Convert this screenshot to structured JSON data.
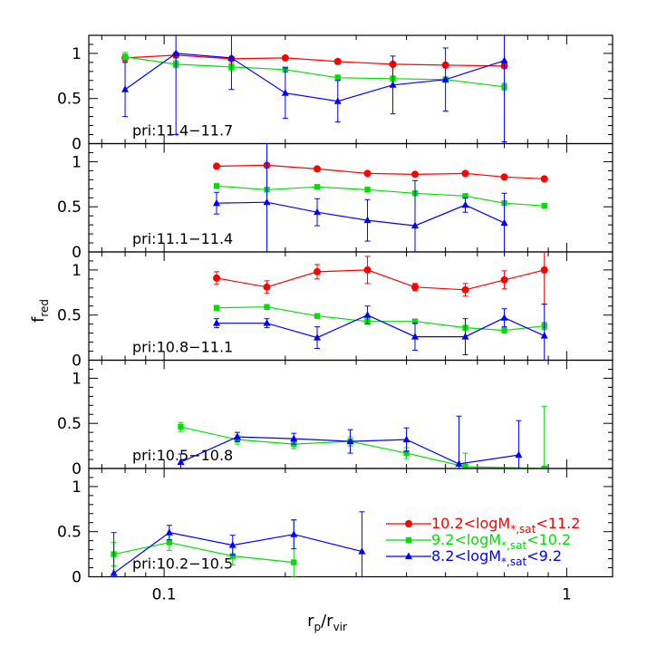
{
  "chart_data": {
    "type": "line",
    "xlabel": "r_p/r_vir",
    "ylabel": "f_red",
    "xscale": "log",
    "xlim": [
      0.065,
      1.3
    ],
    "ylim": [
      0,
      1.2
    ],
    "x_ticks": [
      "0.1",
      "1"
    ],
    "y_ticks": [
      "0",
      "0.5",
      "1"
    ],
    "colors": {
      "high": "#ff0000",
      "mid": "#00e000",
      "low": "#0000ff"
    },
    "legend": {
      "placement": "lower-right of bottom panel",
      "entries": [
        {
          "key": "high",
          "pre": "10.2<logM",
          "sub": "*,sat",
          "post": "<11.2",
          "marker": "circle"
        },
        {
          "key": "mid",
          "pre": "9.2<logM",
          "sub": "*,sat",
          "post": "<10.2",
          "marker": "square"
        },
        {
          "key": "low",
          "pre": "8.2<logM",
          "sub": "*,sat",
          "post": "<9.2",
          "marker": "triangle"
        }
      ]
    },
    "panels": [
      {
        "label": "pri:11.4−11.7",
        "series": [
          {
            "key": "high",
            "points": [
              [
                0.08,
                0.95,
                0.04
              ],
              [
                0.107,
                0.98,
                0.03
              ],
              [
                0.147,
                0.94,
                0.02
              ],
              [
                0.2,
                0.95,
                0.02
              ],
              [
                0.27,
                0.91,
                0.02
              ],
              [
                0.37,
                0.88,
                0.02
              ],
              [
                0.5,
                0.87,
                0.02
              ],
              [
                0.7,
                0.86,
                0.02
              ]
            ]
          },
          {
            "key": "mid",
            "points": [
              [
                0.08,
                0.96,
                0.05
              ],
              [
                0.107,
                0.88,
                0.04
              ],
              [
                0.147,
                0.85,
                0.04
              ],
              [
                0.2,
                0.82,
                0.03
              ],
              [
                0.27,
                0.73,
                0.03
              ],
              [
                0.37,
                0.72,
                0.03
              ],
              [
                0.5,
                0.71,
                0.03
              ],
              [
                0.7,
                0.63,
                0.04
              ]
            ]
          },
          {
            "key": "low",
            "points": [
              [
                0.08,
                0.6,
                0.3
              ],
              [
                0.107,
                1.0,
                0.9
              ],
              [
                0.147,
                0.95,
                0.35
              ],
              [
                0.2,
                0.56,
                0.28
              ],
              [
                0.27,
                0.47,
                0.23
              ],
              [
                0.37,
                0.65,
                0.32
              ],
              [
                0.5,
                0.71,
                0.35
              ],
              [
                0.7,
                0.92,
                0.9
              ]
            ]
          }
        ]
      },
      {
        "label": "pri:11.1−11.4",
        "series": [
          {
            "key": "high",
            "points": [
              [
                0.135,
                0.95,
                0.02
              ],
              [
                0.18,
                0.96,
                0.02
              ],
              [
                0.24,
                0.92,
                0.02
              ],
              [
                0.32,
                0.87,
                0.02
              ],
              [
                0.42,
                0.86,
                0.02
              ],
              [
                0.56,
                0.87,
                0.02
              ],
              [
                0.7,
                0.83,
                0.02
              ],
              [
                0.88,
                0.81,
                0.02
              ]
            ]
          },
          {
            "key": "mid",
            "points": [
              [
                0.135,
                0.73,
                0.02
              ],
              [
                0.18,
                0.69,
                0.02
              ],
              [
                0.24,
                0.72,
                0.02
              ],
              [
                0.32,
                0.69,
                0.02
              ],
              [
                0.42,
                0.65,
                0.02
              ],
              [
                0.56,
                0.62,
                0.02
              ],
              [
                0.7,
                0.54,
                0.02
              ],
              [
                0.88,
                0.51,
                0.02
              ]
            ]
          },
          {
            "key": "low",
            "points": [
              [
                0.135,
                0.54,
                0.12
              ],
              [
                0.18,
                0.55,
                0.65
              ],
              [
                0.24,
                0.44,
                0.15
              ],
              [
                0.32,
                0.35,
                0.23
              ],
              [
                0.42,
                0.29,
                0.5
              ],
              [
                0.56,
                0.52,
                0.08
              ],
              [
                0.7,
                0.32,
                0.33
              ]
            ]
          }
        ]
      },
      {
        "label": "pri:10.8−11.1",
        "series": [
          {
            "key": "high",
            "points": [
              [
                0.135,
                0.91,
                0.07
              ],
              [
                0.18,
                0.81,
                0.07
              ],
              [
                0.24,
                0.98,
                0.08
              ],
              [
                0.32,
                1.0,
                0.15
              ],
              [
                0.42,
                0.81,
                0.04
              ],
              [
                0.56,
                0.78,
                0.07
              ],
              [
                0.7,
                0.89,
                0.1
              ],
              [
                0.88,
                1.0,
                0.38
              ]
            ]
          },
          {
            "key": "mid",
            "points": [
              [
                0.135,
                0.58,
                0.02
              ],
              [
                0.18,
                0.59,
                0.02
              ],
              [
                0.24,
                0.49,
                0.02
              ],
              [
                0.32,
                0.43,
                0.03
              ],
              [
                0.42,
                0.43,
                0.02
              ],
              [
                0.56,
                0.36,
                0.02
              ],
              [
                0.7,
                0.33,
                0.03
              ],
              [
                0.88,
                0.38,
                0.04
              ]
            ]
          },
          {
            "key": "low",
            "points": [
              [
                0.135,
                0.41,
                0.05
              ],
              [
                0.18,
                0.41,
                0.05
              ],
              [
                0.24,
                0.25,
                0.12
              ],
              [
                0.32,
                0.5,
                0.1
              ],
              [
                0.42,
                0.26,
                0.15
              ],
              [
                0.56,
                0.26,
                0.2
              ],
              [
                0.7,
                0.47,
                0.1
              ],
              [
                0.88,
                0.27,
                0.35
              ]
            ]
          }
        ]
      },
      {
        "label": "pri:10.5−10.8",
        "series": [
          {
            "key": "mid",
            "points": [
              [
                0.11,
                0.46,
                0.05
              ],
              [
                0.152,
                0.32,
                0.05
              ],
              [
                0.21,
                0.27,
                0.05
              ],
              [
                0.29,
                0.3,
                0.05
              ],
              [
                0.4,
                0.17,
                0.06
              ],
              [
                0.56,
                0.02,
                0.15
              ],
              [
                0.88,
                0.0,
                0.69
              ]
            ]
          },
          {
            "key": "low",
            "points": [
              [
                0.11,
                0.07,
                0.09
              ],
              [
                0.152,
                0.35,
                0.05
              ],
              [
                0.21,
                0.33,
                0.06
              ],
              [
                0.29,
                0.3,
                0.13
              ],
              [
                0.4,
                0.32,
                0.13
              ],
              [
                0.54,
                0.05,
                0.53
              ],
              [
                0.76,
                0.15,
                0.38
              ]
            ]
          }
        ]
      },
      {
        "label": "pri:10.2−10.5",
        "series": [
          {
            "key": "mid",
            "points": [
              [
                0.075,
                0.25,
                0.13
              ],
              [
                0.103,
                0.38,
                0.09
              ],
              [
                0.148,
                0.23,
                0.1
              ],
              [
                0.21,
                0.16,
                0.47
              ]
            ]
          },
          {
            "key": "low",
            "points": [
              [
                0.075,
                0.04,
                0.45
              ],
              [
                0.103,
                0.49,
                0.08
              ],
              [
                0.148,
                0.35,
                0.11
              ],
              [
                0.21,
                0.47,
                0.16
              ],
              [
                0.31,
                0.28,
                0.44
              ]
            ]
          }
        ]
      }
    ]
  }
}
